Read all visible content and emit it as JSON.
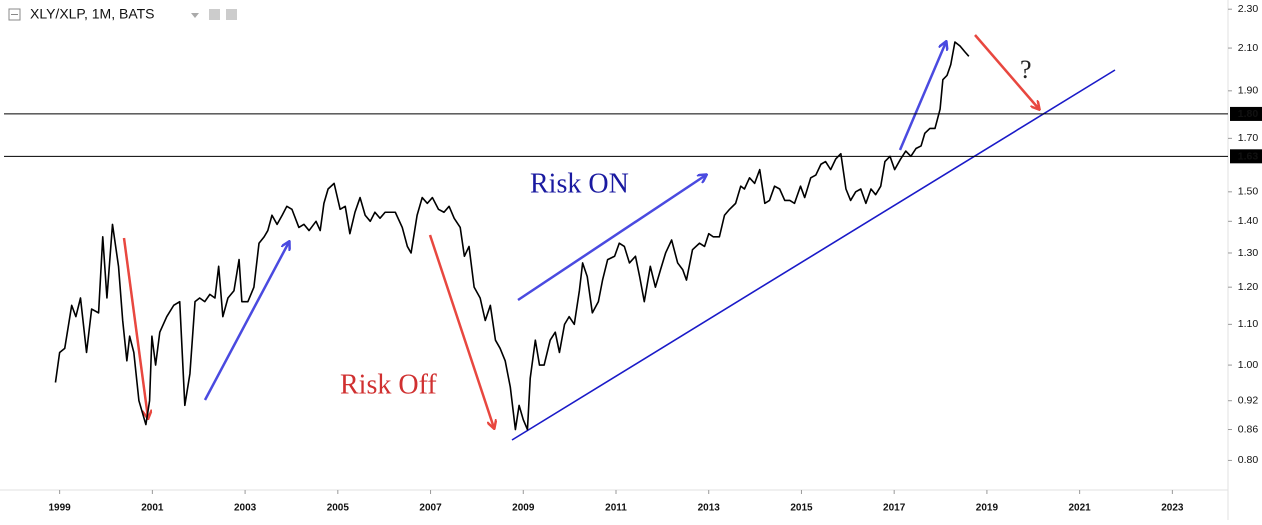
{
  "chart_data": {
    "type": "line",
    "title": "XLY/XLP, 1M, BATS",
    "yscale": "log",
    "grid": false,
    "color": "#000000",
    "xlim": [
      1997.8,
      2024.2
    ],
    "ylim": [
      0.75,
      2.35
    ],
    "xticks": [
      1999,
      2001,
      2003,
      2005,
      2007,
      2009,
      2011,
      2013,
      2015,
      2017,
      2019,
      2021,
      2023
    ],
    "yticks": [
      {
        "value": 0.8,
        "label": "0.80"
      },
      {
        "value": 0.86,
        "label": "0.86"
      },
      {
        "value": 0.92,
        "label": "0.92"
      },
      {
        "value": 1.0,
        "label": "1.00"
      },
      {
        "value": 1.1,
        "label": "1.10"
      },
      {
        "value": 1.2,
        "label": "1.20"
      },
      {
        "value": 1.3,
        "label": "1.30"
      },
      {
        "value": 1.4,
        "label": "1.40"
      },
      {
        "value": 1.5,
        "label": "1.50"
      },
      {
        "value": 1.7,
        "label": "1.70"
      },
      {
        "value": 1.9,
        "label": "1.90"
      },
      {
        "value": 2.1,
        "label": "2.10"
      },
      {
        "value": 2.3,
        "label": "2.30"
      }
    ],
    "hlines": [
      {
        "value": 1.8,
        "label": "1.80"
      },
      {
        "value": 1.63,
        "label": "1.63"
      }
    ],
    "annotations": [
      "Risk ON",
      "Risk Off",
      "?"
    ],
    "x": [
      1998.91,
      1999.0,
      1999.11,
      1999.26,
      1999.35,
      1999.45,
      1999.58,
      1999.69,
      1999.84,
      1999.93,
      2000.02,
      2000.14,
      2000.27,
      2000.36,
      2000.45,
      2000.51,
      2000.6,
      2000.71,
      2000.86,
      2000.94,
      2000.99,
      2001.07,
      2001.16,
      2001.31,
      2001.46,
      2001.59,
      2001.7,
      2001.81,
      2001.92,
      2002.02,
      2002.13,
      2002.24,
      2002.35,
      2002.43,
      2002.52,
      2002.63,
      2002.76,
      2002.87,
      2002.93,
      2003.06,
      2003.19,
      2003.3,
      2003.41,
      2003.49,
      2003.58,
      2003.69,
      2003.8,
      2003.9,
      2004.01,
      2004.16,
      2004.27,
      2004.38,
      2004.53,
      2004.62,
      2004.7,
      2004.79,
      2004.92,
      2005.05,
      2005.16,
      2005.26,
      2005.37,
      2005.48,
      2005.59,
      2005.7,
      2005.8,
      2005.91,
      2006.02,
      2006.24,
      2006.39,
      2006.5,
      2006.58,
      2006.71,
      2006.82,
      2006.93,
      2007.04,
      2007.17,
      2007.29,
      2007.4,
      2007.51,
      2007.64,
      2007.73,
      2007.83,
      2007.94,
      2008.07,
      2008.18,
      2008.29,
      2008.4,
      2008.5,
      2008.61,
      2008.72,
      2008.83,
      2008.91,
      2009.0,
      2009.09,
      2009.15,
      2009.26,
      2009.35,
      2009.45,
      2009.58,
      2009.69,
      2009.78,
      2009.89,
      2009.99,
      2010.1,
      2010.21,
      2010.28,
      2010.38,
      2010.49,
      2010.62,
      2010.71,
      2010.82,
      2010.97,
      2011.07,
      2011.18,
      2011.29,
      2011.42,
      2011.51,
      2011.61,
      2011.74,
      2011.85,
      2011.96,
      2012.07,
      2012.2,
      2012.33,
      2012.44,
      2012.52,
      2012.65,
      2012.8,
      2012.91,
      2013.0,
      2013.1,
      2013.23,
      2013.34,
      2013.45,
      2013.58,
      2013.69,
      2013.77,
      2013.88,
      2013.99,
      2014.1,
      2014.21,
      2014.31,
      2014.42,
      2014.53,
      2014.64,
      2014.75,
      2014.85,
      2014.98,
      2015.07,
      2015.2,
      2015.31,
      2015.42,
      2015.52,
      2015.63,
      2015.74,
      2015.85,
      2015.96,
      2016.06,
      2016.17,
      2016.28,
      2016.39,
      2016.5,
      2016.6,
      2016.71,
      2016.8,
      2016.91,
      2017.01,
      2017.14,
      2017.25,
      2017.36,
      2017.47,
      2017.58,
      2017.66,
      2017.77,
      2017.88,
      2017.99,
      2018.05,
      2018.14,
      2018.22,
      2018.31,
      2018.42,
      2018.53,
      2018.61
    ],
    "values": [
      0.96,
      1.03,
      1.04,
      1.15,
      1.12,
      1.17,
      1.03,
      1.14,
      1.13,
      1.35,
      1.17,
      1.39,
      1.26,
      1.11,
      1.01,
      1.07,
      1.03,
      0.92,
      0.87,
      0.92,
      1.07,
      1.0,
      1.08,
      1.12,
      1.15,
      1.16,
      0.91,
      0.98,
      1.16,
      1.17,
      1.16,
      1.18,
      1.17,
      1.26,
      1.12,
      1.17,
      1.19,
      1.28,
      1.16,
      1.16,
      1.2,
      1.33,
      1.35,
      1.37,
      1.42,
      1.39,
      1.42,
      1.45,
      1.44,
      1.38,
      1.39,
      1.37,
      1.4,
      1.37,
      1.46,
      1.51,
      1.53,
      1.44,
      1.45,
      1.36,
      1.43,
      1.48,
      1.42,
      1.4,
      1.43,
      1.41,
      1.43,
      1.43,
      1.38,
      1.32,
      1.3,
      1.42,
      1.48,
      1.46,
      1.48,
      1.44,
      1.43,
      1.45,
      1.41,
      1.38,
      1.29,
      1.32,
      1.2,
      1.17,
      1.11,
      1.15,
      1.06,
      1.04,
      1.01,
      0.95,
      0.86,
      0.91,
      0.88,
      0.86,
      0.97,
      1.06,
      1.0,
      1.0,
      1.06,
      1.08,
      1.03,
      1.1,
      1.12,
      1.1,
      1.19,
      1.27,
      1.23,
      1.13,
      1.16,
      1.22,
      1.28,
      1.29,
      1.33,
      1.32,
      1.27,
      1.29,
      1.23,
      1.16,
      1.26,
      1.2,
      1.25,
      1.3,
      1.34,
      1.27,
      1.25,
      1.22,
      1.31,
      1.33,
      1.32,
      1.36,
      1.35,
      1.35,
      1.42,
      1.44,
      1.46,
      1.52,
      1.51,
      1.55,
      1.53,
      1.58,
      1.46,
      1.47,
      1.52,
      1.51,
      1.47,
      1.47,
      1.46,
      1.52,
      1.48,
      1.55,
      1.56,
      1.6,
      1.61,
      1.58,
      1.62,
      1.64,
      1.51,
      1.47,
      1.5,
      1.51,
      1.46,
      1.51,
      1.49,
      1.52,
      1.61,
      1.63,
      1.58,
      1.62,
      1.65,
      1.63,
      1.66,
      1.67,
      1.72,
      1.74,
      1.74,
      1.82,
      1.95,
      1.97,
      2.02,
      2.13,
      2.11,
      2.08,
      2.06
    ]
  }
}
